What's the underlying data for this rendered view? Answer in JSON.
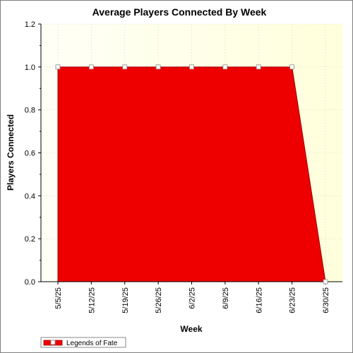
{
  "chart_data": {
    "type": "area",
    "title": "Average Players Connected By Week",
    "xlabel": "Week",
    "ylabel": "Players Connected",
    "categories": [
      "5/5/25",
      "5/12/25",
      "5/19/25",
      "5/26/25",
      "6/2/25",
      "6/9/25",
      "6/16/25",
      "6/23/25",
      "6/30/25"
    ],
    "series": [
      {
        "name": "Legends of Fate",
        "values": [
          1,
          1,
          1,
          1,
          1,
          1,
          1,
          1,
          0
        ]
      }
    ],
    "ylim": [
      0,
      1.2
    ],
    "yticks": [
      "0.0",
      "0.2",
      "0.4",
      "0.6",
      "0.8",
      "1.0",
      "1.2"
    ],
    "grid": true,
    "legend_position": "bottom-left",
    "colors": {
      "area_fill": "#ee0000",
      "area_edge": "#990000",
      "plot_bg_start": "#fffff7",
      "plot_bg_end": "#ffffdc",
      "grid": "#c8c8a0",
      "marker_fill": "#ffffff",
      "marker_edge": "#888888"
    }
  }
}
